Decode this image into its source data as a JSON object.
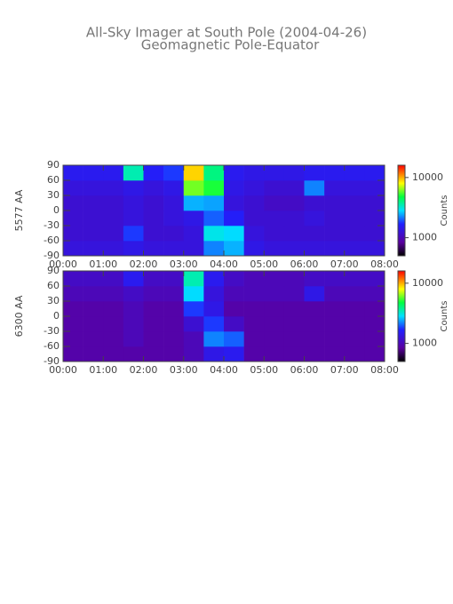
{
  "chart_data": [
    {
      "type": "heatmap",
      "title": "All-Sky Imager at South Pole (2004-04-26)",
      "subtitle": "Geomagnetic Pole-Equator",
      "ylabel": "5577 AA",
      "xlim": [
        0,
        8
      ],
      "xticks": [
        {
          "value": 0,
          "label": "00:00"
        },
        {
          "value": 1,
          "label": "01:00"
        },
        {
          "value": 2,
          "label": "02:00"
        },
        {
          "value": 3,
          "label": "03:00"
        },
        {
          "value": 4,
          "label": "04:00"
        },
        {
          "value": 5,
          "label": "05:00"
        },
        {
          "value": 6,
          "label": "06:00"
        },
        {
          "value": 7,
          "label": "07:00"
        },
        {
          "value": 8,
          "label": "08:00"
        }
      ],
      "ylim": [
        -90,
        90
      ],
      "yticks": [
        -90,
        -60,
        -30,
        0,
        30,
        60,
        90
      ],
      "xbins": [
        0,
        0.5,
        1,
        1.5,
        2,
        2.5,
        3,
        3.5,
        4,
        4.5,
        5,
        5.5,
        6,
        6.5,
        7,
        7.5,
        8
      ],
      "ybins": [
        -90,
        -60,
        -30,
        0,
        30,
        60,
        90
      ],
      "values": [
        [
          1300,
          1300,
          1300,
          1400,
          1300,
          1300,
          1300,
          2200,
          2500,
          1400,
          1300,
          1300,
          1300,
          1300,
          1300,
          1300
        ],
        [
          1200,
          1200,
          1200,
          1800,
          1200,
          1200,
          1300,
          3000,
          2800,
          1300,
          1200,
          1200,
          1200,
          1200,
          1200,
          1200
        ],
        [
          1200,
          1200,
          1200,
          1300,
          1200,
          1300,
          1400,
          2000,
          1600,
          1200,
          1200,
          1200,
          1300,
          1200,
          1200,
          1200
        ],
        [
          1200,
          1200,
          1200,
          1300,
          1200,
          1300,
          2500,
          2400,
          1300,
          1200,
          1100,
          1100,
          1200,
          1200,
          1200,
          1200
        ],
        [
          1300,
          1300,
          1300,
          1400,
          1300,
          1400,
          6000,
          5000,
          1400,
          1300,
          1200,
          1200,
          2200,
          1300,
          1300,
          1300
        ],
        [
          1500,
          1500,
          1500,
          3500,
          1600,
          1800,
          9000,
          4000,
          1500,
          1400,
          1400,
          1400,
          1500,
          1500,
          1500,
          1500
        ]
      ],
      "clim": [
        500,
        16000
      ],
      "cticks": [
        1000,
        10000
      ],
      "clabel": "Counts",
      "color_log": true
    },
    {
      "type": "heatmap",
      "ylabel": "6300 AA",
      "xlim": [
        0,
        8
      ],
      "xticks": [
        {
          "value": 0,
          "label": "00:00"
        },
        {
          "value": 1,
          "label": "01:00"
        },
        {
          "value": 2,
          "label": "02:00"
        },
        {
          "value": 3,
          "label": "03:00"
        },
        {
          "value": 4,
          "label": "04:00"
        },
        {
          "value": 5,
          "label": "05:00"
        },
        {
          "value": 6,
          "label": "06:00"
        },
        {
          "value": 7,
          "label": "07:00"
        },
        {
          "value": 8,
          "label": "08:00"
        }
      ],
      "ylim": [
        -90,
        90
      ],
      "yticks": [
        -90,
        -60,
        -30,
        0,
        30,
        60,
        90
      ],
      "xbins": [
        0,
        0.5,
        1,
        1.5,
        2,
        2.5,
        3,
        3.5,
        4,
        4.5,
        5,
        5.5,
        6,
        6.5,
        7,
        7.5,
        8
      ],
      "ybins": [
        -90,
        -60,
        -30,
        0,
        30,
        60,
        90
      ],
      "values": [
        [
          900,
          900,
          900,
          900,
          900,
          900,
          1000,
          1400,
          1500,
          900,
          900,
          900,
          900,
          900,
          900,
          900
        ],
        [
          900,
          900,
          900,
          1000,
          900,
          900,
          1000,
          2200,
          2000,
          900,
          900,
          900,
          900,
          900,
          900,
          900
        ],
        [
          900,
          900,
          900,
          1000,
          900,
          900,
          1200,
          1800,
          1100,
          900,
          900,
          900,
          900,
          900,
          900,
          900
        ],
        [
          900,
          900,
          900,
          1000,
          900,
          900,
          1800,
          1400,
          900,
          900,
          900,
          900,
          900,
          900,
          900,
          900
        ],
        [
          1000,
          1000,
          1000,
          1100,
          1000,
          1000,
          2800,
          1300,
          1000,
          1000,
          1000,
          1000,
          1400,
          1000,
          1000,
          1000
        ],
        [
          1100,
          1100,
          1100,
          1500,
          1100,
          1100,
          3500,
          1500,
          1100,
          1000,
          1000,
          1000,
          1100,
          1100,
          1100,
          1100
        ]
      ],
      "clim": [
        500,
        16000
      ],
      "cticks": [
        1000,
        10000
      ],
      "clabel": "Counts",
      "color_log": true
    }
  ]
}
